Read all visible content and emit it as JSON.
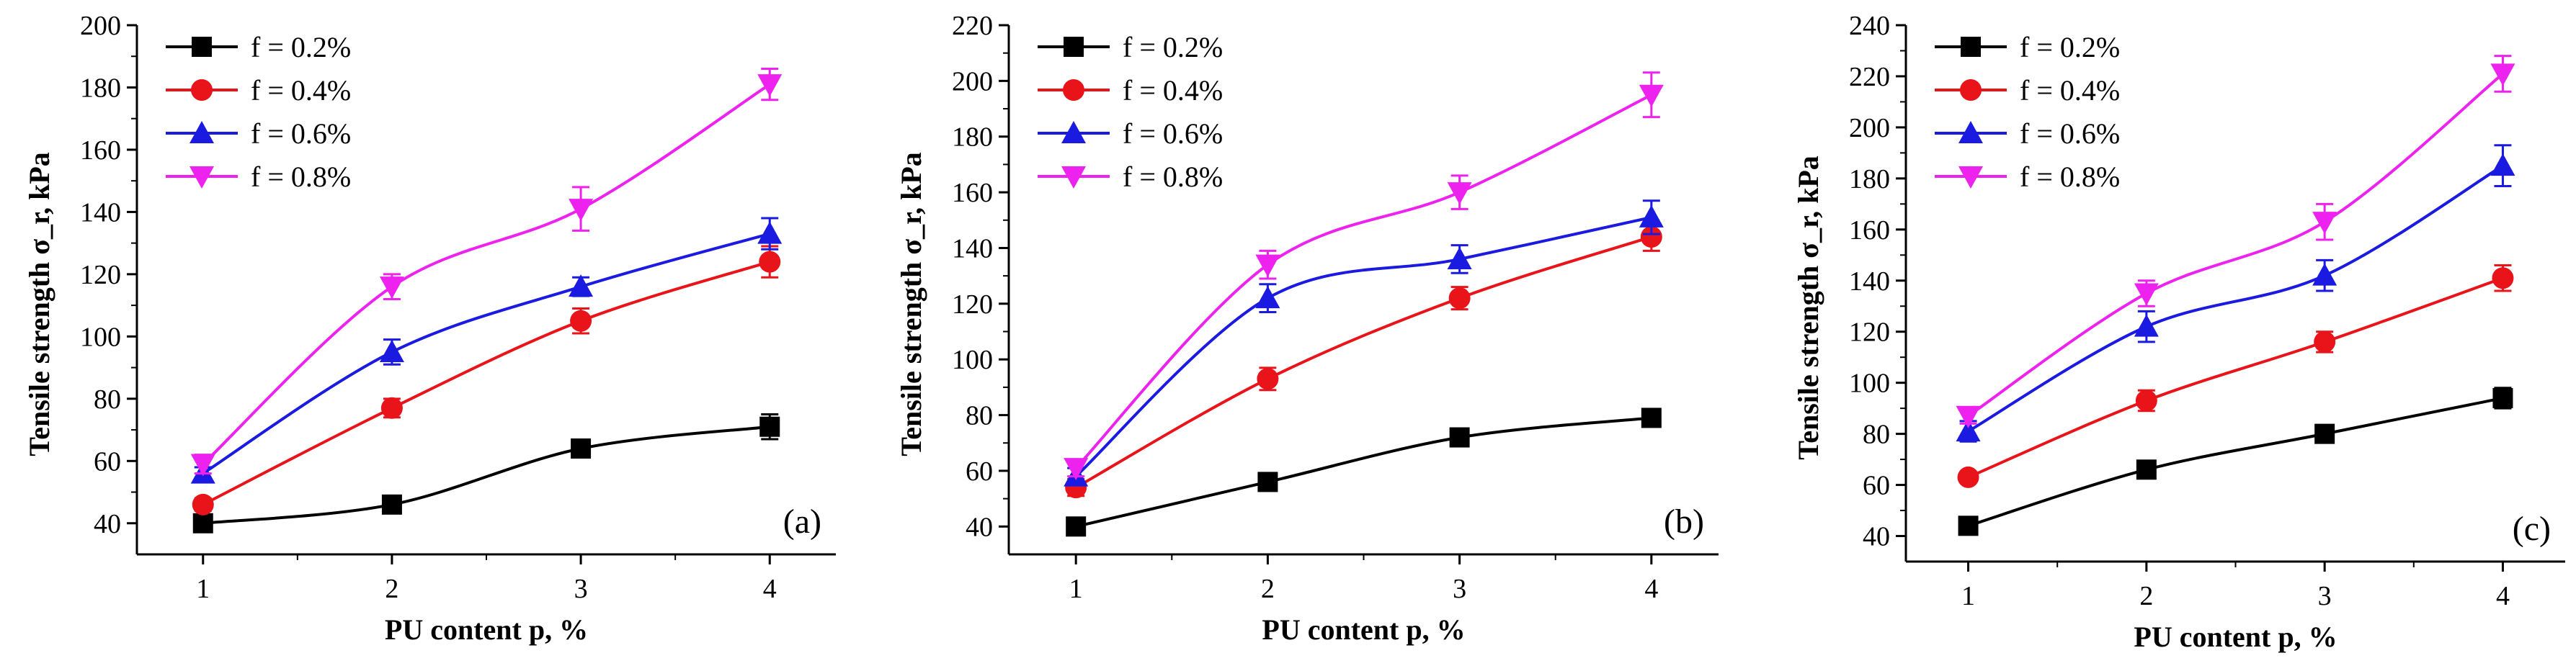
{
  "chart_data": [
    {
      "type": "line",
      "panel_label": "(a)",
      "xlabel": "PU content p, %",
      "ylabel": "Tensile strength σ_r, kPa",
      "xlim": [
        0.65,
        4.35
      ],
      "ylim": [
        30,
        200
      ],
      "x_ticks": [
        1,
        2,
        3,
        4
      ],
      "y_ticks": [
        40,
        60,
        80,
        100,
        120,
        140,
        160,
        180,
        200
      ],
      "categories": [
        1,
        2,
        3,
        4
      ],
      "legend_position": "top-left",
      "series": [
        {
          "name": "f = 0.2%",
          "color": "#000000",
          "marker": "square",
          "values": [
            40,
            46,
            64,
            71
          ],
          "errors": [
            1.5,
            2,
            2.5,
            4
          ]
        },
        {
          "name": "f = 0.4%",
          "color": "#e8141a",
          "marker": "circle",
          "values": [
            46,
            77,
            105,
            124
          ],
          "errors": [
            2,
            3,
            4,
            5
          ]
        },
        {
          "name": "f = 0.6%",
          "color": "#1a1ae0",
          "marker": "triangle-up",
          "values": [
            56,
            95,
            116,
            133
          ],
          "errors": [
            2,
            4,
            3,
            5
          ]
        },
        {
          "name": "f = 0.8%",
          "color": "#ee22ee",
          "marker": "triangle-down",
          "values": [
            59,
            116,
            141,
            181
          ],
          "errors": [
            3,
            4,
            7,
            5
          ]
        }
      ]
    },
    {
      "type": "line",
      "panel_label": "(b)",
      "xlabel": "PU content p, %",
      "ylabel": "Tensile strength σ_r, kPa",
      "xlim": [
        0.65,
        4.35
      ],
      "ylim": [
        30,
        220
      ],
      "x_ticks": [
        1,
        2,
        3,
        4
      ],
      "y_ticks": [
        40,
        60,
        80,
        100,
        120,
        140,
        160,
        180,
        200,
        220
      ],
      "categories": [
        1,
        2,
        3,
        4
      ],
      "legend_position": "top-left",
      "series": [
        {
          "name": "f = 0.2%",
          "color": "#000000",
          "marker": "square",
          "values": [
            40,
            56,
            72,
            79
          ],
          "errors": [
            1.5,
            2,
            2.5,
            3
          ]
        },
        {
          "name": "f = 0.4%",
          "color": "#e8141a",
          "marker": "circle",
          "values": [
            54,
            93,
            122,
            144
          ],
          "errors": [
            3,
            4,
            4,
            5
          ]
        },
        {
          "name": "f = 0.6%",
          "color": "#1a1ae0",
          "marker": "triangle-up",
          "values": [
            58,
            122,
            136,
            151
          ],
          "errors": [
            3,
            5,
            5,
            6
          ]
        },
        {
          "name": "f = 0.8%",
          "color": "#ee22ee",
          "marker": "triangle-down",
          "values": [
            61,
            134,
            160,
            195
          ],
          "errors": [
            3,
            5,
            6,
            8
          ]
        }
      ]
    },
    {
      "type": "line",
      "panel_label": "(c)",
      "xlabel": "PU content p, %",
      "ylabel": "Tensile strength σ_r, kPa",
      "xlim": [
        0.65,
        4.35
      ],
      "ylim": [
        30,
        240
      ],
      "x_ticks": [
        1,
        2,
        3,
        4
      ],
      "y_ticks": [
        40,
        60,
        80,
        100,
        120,
        140,
        160,
        180,
        200,
        220,
        240
      ],
      "categories": [
        1,
        2,
        3,
        4
      ],
      "legend_position": "top-left",
      "series": [
        {
          "name": "f = 0.2%",
          "color": "#000000",
          "marker": "square",
          "values": [
            44,
            66,
            80,
            94
          ],
          "errors": [
            1.5,
            2.5,
            2,
            4
          ]
        },
        {
          "name": "f = 0.4%",
          "color": "#e8141a",
          "marker": "circle",
          "values": [
            63,
            93,
            116,
            141
          ],
          "errors": [
            2,
            4,
            4,
            5
          ]
        },
        {
          "name": "f = 0.6%",
          "color": "#1a1ae0",
          "marker": "triangle-up",
          "values": [
            81,
            122,
            142,
            185
          ],
          "errors": [
            4,
            6,
            6,
            8
          ]
        },
        {
          "name": "f = 0.8%",
          "color": "#ee22ee",
          "marker": "triangle-down",
          "values": [
            87,
            135,
            163,
            221
          ],
          "errors": [
            3,
            5,
            7,
            7
          ]
        }
      ]
    }
  ]
}
